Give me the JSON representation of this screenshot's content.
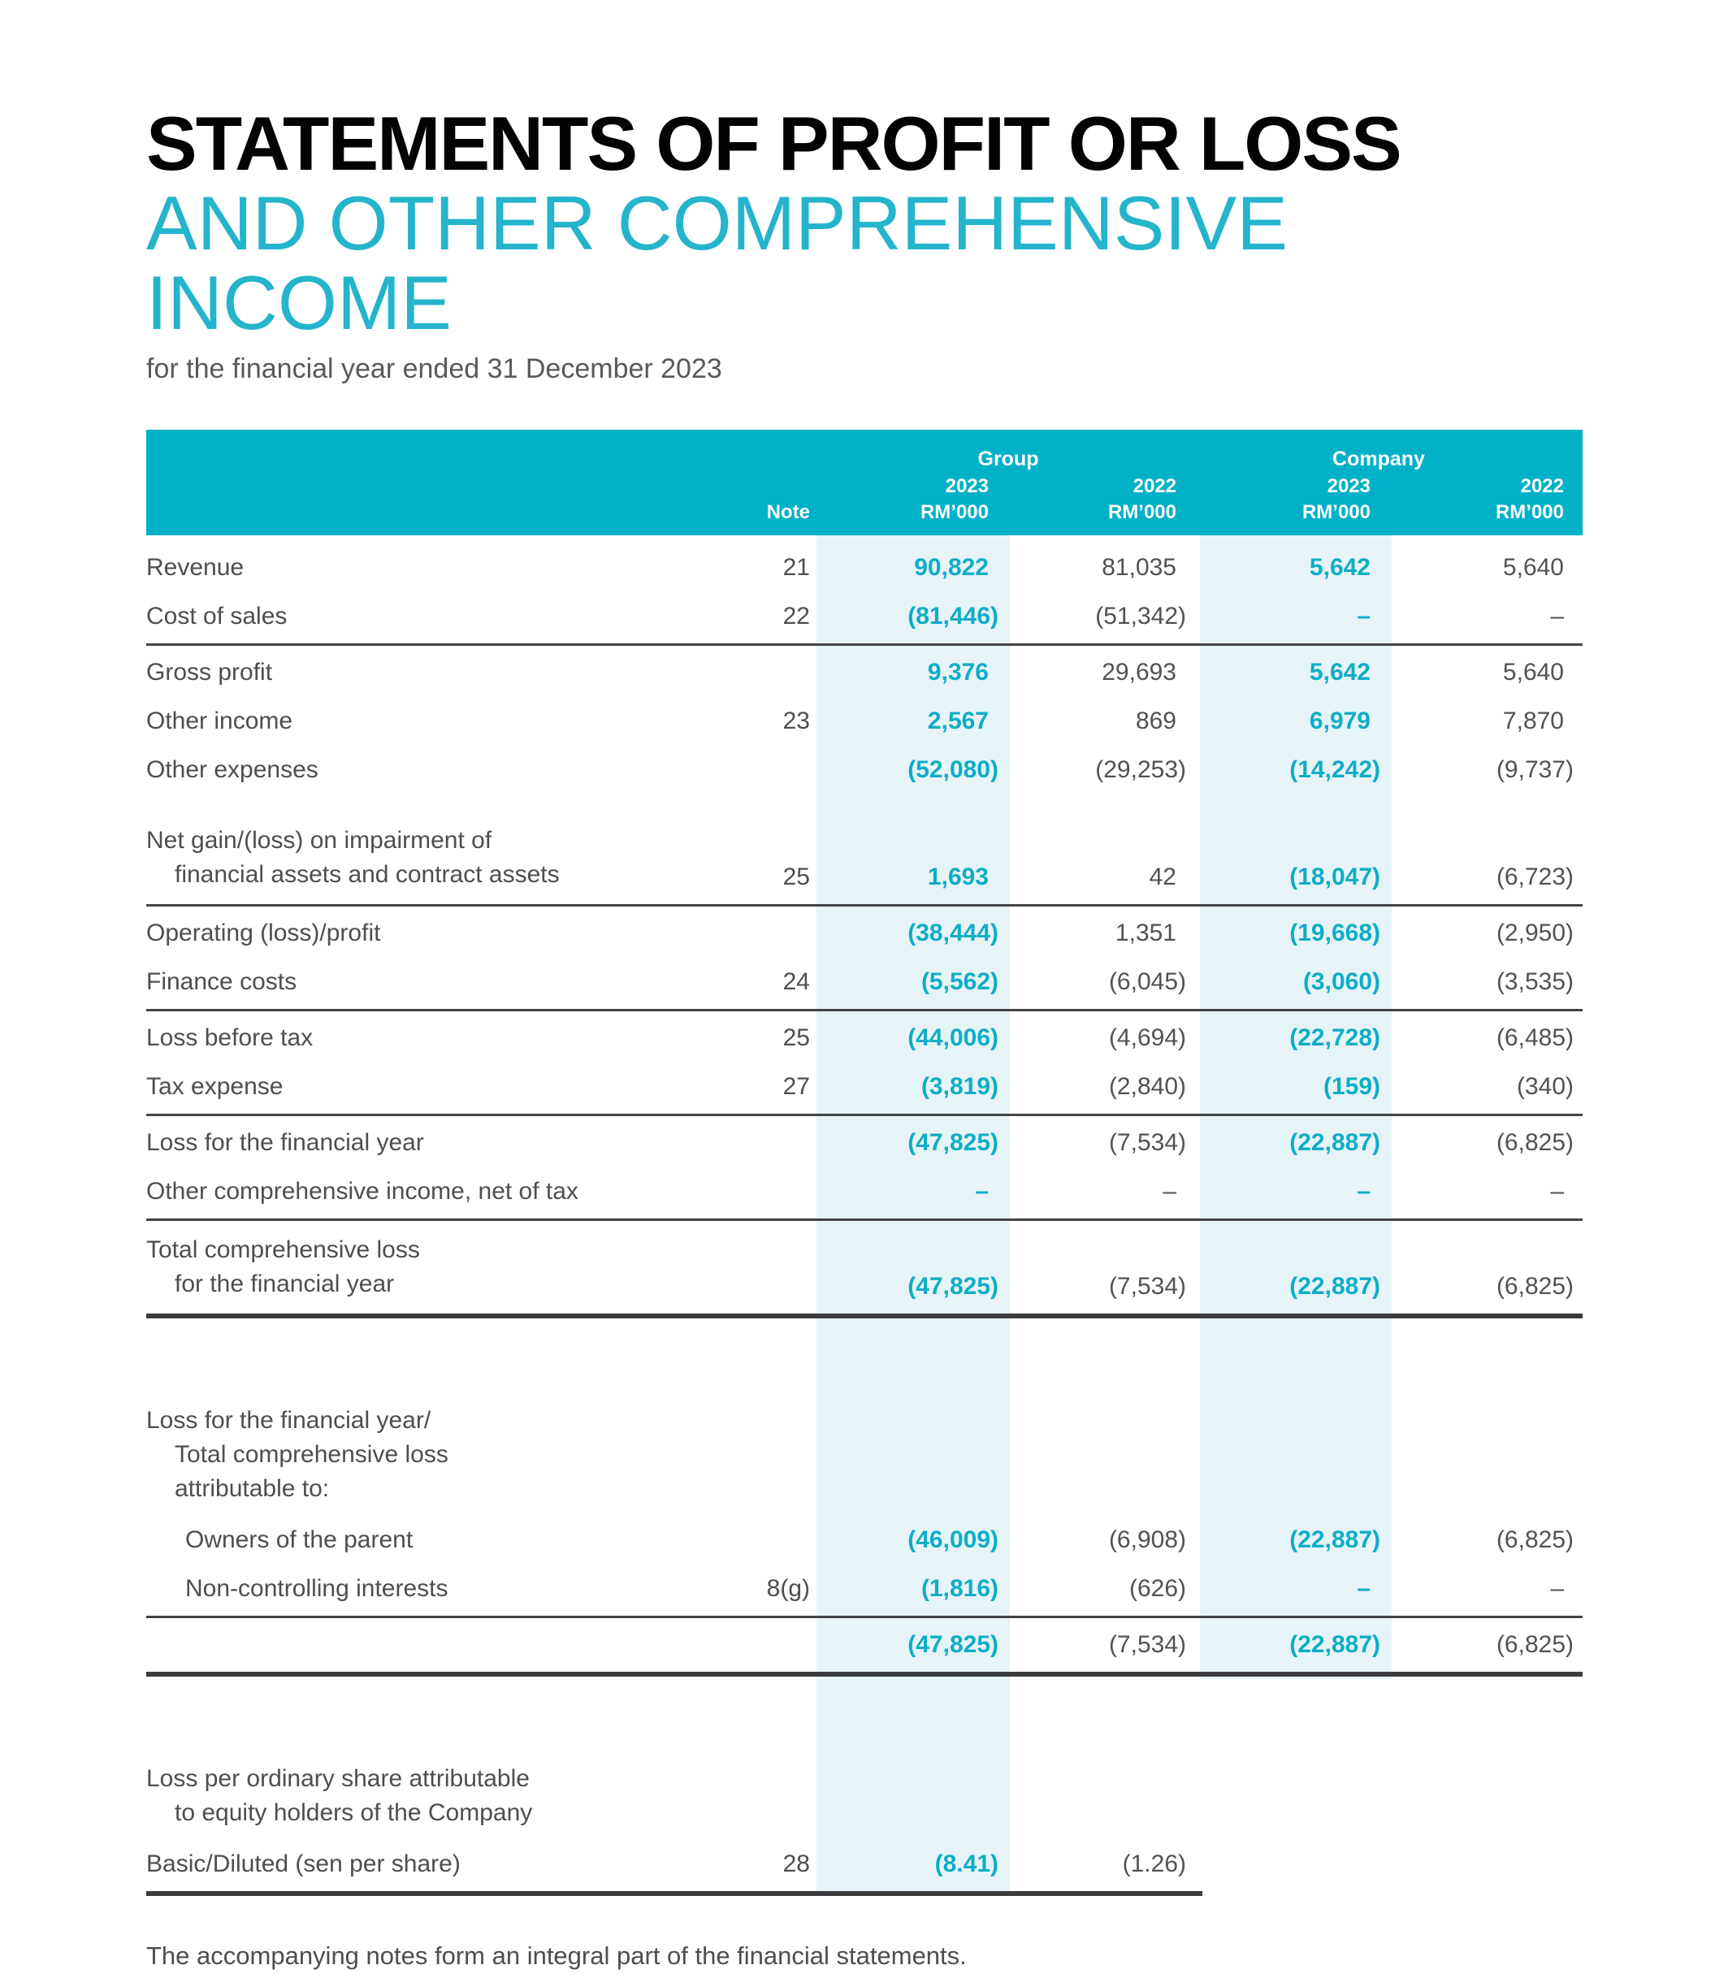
{
  "document": {
    "title_black": "STATEMENTS OF PROFIT OR LOSS",
    "title_teal": "AND OTHER COMPREHENSIVE INCOME",
    "subtitle": "for the financial year ended 31 December 2023",
    "footnote": "The accompanying notes form an integral part of the financial statements."
  },
  "colors": {
    "header_teal": "#00b1c7",
    "accent_teal": "#0fadc7",
    "band_light": "#e7f4f7",
    "text_dark": "#4d4e50",
    "line_dark": "#3b3c3e"
  },
  "table": {
    "header": {
      "note": "Note",
      "groups": [
        {
          "label": "Group"
        },
        {
          "label": "Company"
        }
      ],
      "columns": [
        {
          "year": "2023",
          "unit": "RM’000"
        },
        {
          "year": "2022",
          "unit": "RM’000"
        },
        {
          "year": "2023",
          "unit": "RM’000"
        },
        {
          "year": "2022",
          "unit": "RM’000"
        }
      ]
    },
    "rows": [
      {
        "label_lines": [
          {
            "text": "Revenue",
            "indent": 0
          }
        ],
        "note": "21",
        "values": [
          "90,822",
          "81,035",
          "5,642",
          "5,640"
        ]
      },
      {
        "label_lines": [
          {
            "text": "Cost of sales",
            "indent": 0
          }
        ],
        "note": "22",
        "values": [
          "(81,446)",
          "(51,342)",
          "–",
          "–"
        ]
      },
      {
        "sep": "thin"
      },
      {
        "label_lines": [
          {
            "text": "Gross profit",
            "indent": 0
          }
        ],
        "note": "",
        "values": [
          "9,376",
          "29,693",
          "5,642",
          "5,640"
        ]
      },
      {
        "label_lines": [
          {
            "text": "Other income",
            "indent": 0
          }
        ],
        "note": "23",
        "values": [
          "2,567",
          "869",
          "6,979",
          "7,870"
        ]
      },
      {
        "label_lines": [
          {
            "text": "Other expenses",
            "indent": 0
          }
        ],
        "note": "",
        "values": [
          "(52,080)",
          "(29,253)",
          "(14,242)",
          "(9,737)"
        ]
      },
      {
        "label_lines": [
          {
            "text": "Net gain/(loss) on impairment of",
            "indent": 0
          },
          {
            "text": "financial assets and contract assets",
            "indent": 1
          }
        ],
        "note": "25",
        "values": [
          "1,693",
          "42",
          "(18,047)",
          "(6,723)"
        ],
        "margin_top": 24
      },
      {
        "sep": "thin"
      },
      {
        "label_lines": [
          {
            "text": "Operating (loss)/profit",
            "indent": 0
          }
        ],
        "note": "",
        "values": [
          "(38,444)",
          "1,351",
          "(19,668)",
          "(2,950)"
        ]
      },
      {
        "label_lines": [
          {
            "text": "Finance costs",
            "indent": 0
          }
        ],
        "note": "24",
        "values": [
          "(5,562)",
          "(6,045)",
          "(3,060)",
          "(3,535)"
        ]
      },
      {
        "sep": "thin"
      },
      {
        "label_lines": [
          {
            "text": "Loss before tax",
            "indent": 0
          }
        ],
        "note": "25",
        "values": [
          "(44,006)",
          "(4,694)",
          "(22,728)",
          "(6,485)"
        ]
      },
      {
        "label_lines": [
          {
            "text": "Tax expense",
            "indent": 0
          }
        ],
        "note": "27",
        "values": [
          "(3,819)",
          "(2,840)",
          "(159)",
          "(340)"
        ]
      },
      {
        "sep": "thin"
      },
      {
        "label_lines": [
          {
            "text": "Loss for the financial year",
            "indent": 0
          }
        ],
        "note": "",
        "values": [
          "(47,825)",
          "(7,534)",
          "(22,887)",
          "(6,825)"
        ]
      },
      {
        "label_lines": [
          {
            "text": "Other comprehensive income, net of tax",
            "indent": 0
          }
        ],
        "note": "",
        "values": [
          "–",
          "–",
          "–",
          "–"
        ]
      },
      {
        "sep": "thin"
      },
      {
        "label_lines": [
          {
            "text": "Total comprehensive loss",
            "indent": 0
          },
          {
            "text": "for the financial year",
            "indent": 1
          }
        ],
        "note": "",
        "values": [
          "(47,825)",
          "(7,534)",
          "(22,887)",
          "(6,825)"
        ]
      },
      {
        "sep": "thick"
      },
      {
        "gap": 90
      },
      {
        "label_lines": [
          {
            "text": "Loss for the financial year/",
            "indent": 0
          },
          {
            "text": "Total comprehensive loss",
            "indent": 1
          },
          {
            "text": "attributable to:",
            "indent": 1
          }
        ],
        "note": "",
        "values": null
      },
      {
        "label_lines": [
          {
            "text": "Owners of the parent",
            "indent": 2
          }
        ],
        "note": "",
        "values": [
          "(46,009)",
          "(6,908)",
          "(22,887)",
          "(6,825)"
        ]
      },
      {
        "label_lines": [
          {
            "text": "Non-controlling interests",
            "indent": 2
          }
        ],
        "note": "8(g)",
        "values": [
          "(1,816)",
          "(626)",
          "–",
          "–"
        ]
      },
      {
        "sep": "thin"
      },
      {
        "label_lines": [],
        "note": "",
        "values": [
          "(47,825)",
          "(7,534)",
          "(22,887)",
          "(6,825)"
        ]
      },
      {
        "sep": "thick"
      },
      {
        "gap": 90
      },
      {
        "label_lines": [
          {
            "text": "Loss per ordinary share attributable",
            "indent": 0
          },
          {
            "text": "to equity holders of the Company",
            "indent": 1
          }
        ],
        "note": "",
        "values": null
      },
      {
        "label_lines": [
          {
            "text": "Basic/Diluted (sen per share)",
            "indent": 0
          }
        ],
        "note": "28",
        "values": [
          "(8.41)",
          "(1.26)",
          "",
          ""
        ]
      },
      {
        "sep": "thick-short"
      }
    ]
  }
}
